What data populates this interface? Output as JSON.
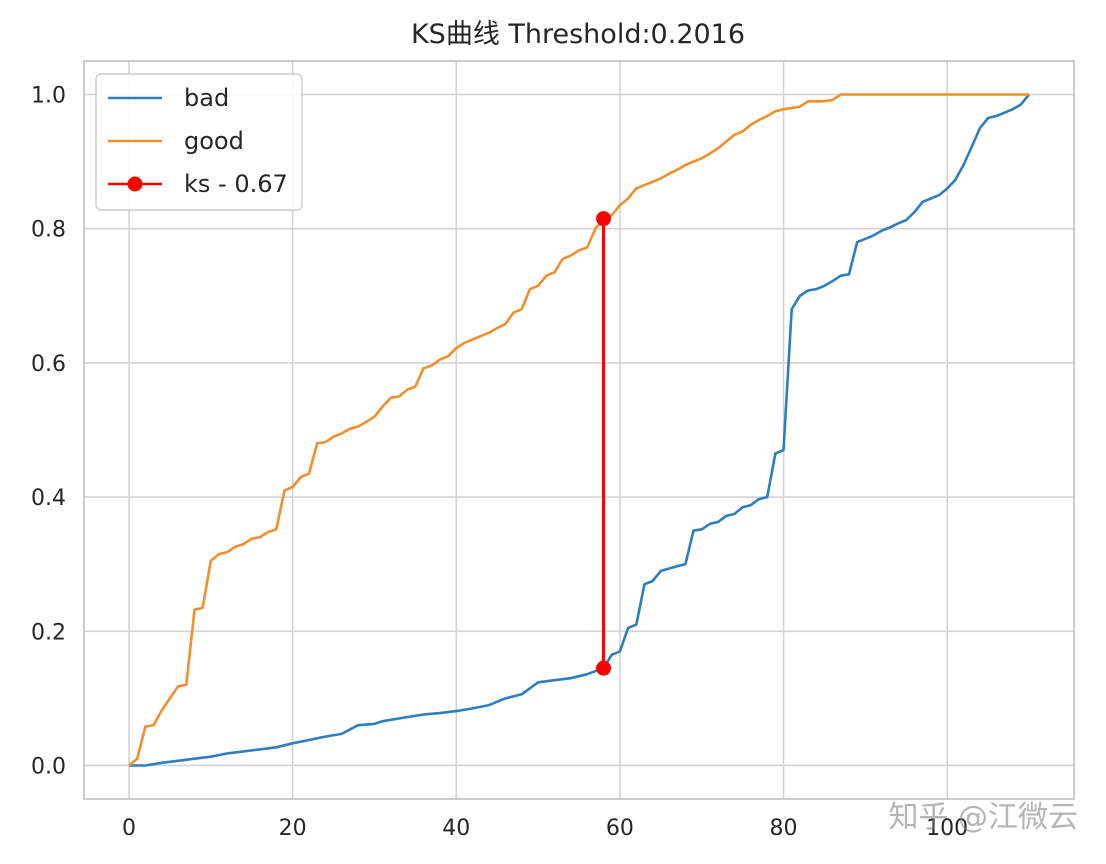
{
  "watermark": "知乎 @江微云",
  "chart_data": {
    "type": "line",
    "title": "KS曲线 Threshold:0.2016",
    "xlabel": "",
    "ylabel": "",
    "xlim": [
      -5.5,
      115.5
    ],
    "ylim": [
      -0.05,
      1.05
    ],
    "xticks": [
      0,
      20,
      40,
      60,
      80,
      100
    ],
    "yticks": [
      0.0,
      0.2,
      0.4,
      0.6,
      0.8,
      1.0
    ],
    "xtick_labels": [
      "0",
      "20",
      "40",
      "60",
      "80",
      "100"
    ],
    "ytick_labels": [
      "0.0",
      "0.2",
      "0.4",
      "0.6",
      "0.8",
      "1.0"
    ],
    "grid": true,
    "legend_position": "top-left",
    "series": [
      {
        "name": "bad",
        "color": "#2f7ebc",
        "points": [
          [
            0,
            0
          ],
          [
            2,
            0
          ],
          [
            4,
            0.004
          ],
          [
            6,
            0.007
          ],
          [
            8,
            0.01
          ],
          [
            10,
            0.013
          ],
          [
            12,
            0.018
          ],
          [
            14,
            0.021
          ],
          [
            16,
            0.024
          ],
          [
            18,
            0.027
          ],
          [
            20,
            0.033
          ],
          [
            22,
            0.038
          ],
          [
            24,
            0.043
          ],
          [
            26,
            0.047
          ],
          [
            28,
            0.06
          ],
          [
            30,
            0.062
          ],
          [
            31,
            0.066
          ],
          [
            32,
            0.068
          ],
          [
            34,
            0.072
          ],
          [
            36,
            0.076
          ],
          [
            38,
            0.078
          ],
          [
            40,
            0.081
          ],
          [
            42,
            0.085
          ],
          [
            44,
            0.09
          ],
          [
            45,
            0.095
          ],
          [
            46,
            0.1
          ],
          [
            48,
            0.106
          ],
          [
            49,
            0.115
          ],
          [
            50,
            0.124
          ],
          [
            52,
            0.127
          ],
          [
            54,
            0.13
          ],
          [
            56,
            0.136
          ],
          [
            58,
            0.145
          ],
          [
            59,
            0.165
          ],
          [
            60,
            0.17
          ],
          [
            61,
            0.205
          ],
          [
            62,
            0.21
          ],
          [
            63,
            0.27
          ],
          [
            64,
            0.275
          ],
          [
            65,
            0.29
          ],
          [
            67,
            0.297
          ],
          [
            68,
            0.3
          ],
          [
            69,
            0.35
          ],
          [
            70,
            0.352
          ],
          [
            71,
            0.36
          ],
          [
            72,
            0.363
          ],
          [
            73,
            0.372
          ],
          [
            74,
            0.375
          ],
          [
            75,
            0.385
          ],
          [
            76,
            0.388
          ],
          [
            77,
            0.397
          ],
          [
            78,
            0.4
          ],
          [
            79,
            0.465
          ],
          [
            80,
            0.47
          ],
          [
            81,
            0.68
          ],
          [
            82,
            0.7
          ],
          [
            83,
            0.708
          ],
          [
            84,
            0.71
          ],
          [
            85,
            0.715
          ],
          [
            86,
            0.722
          ],
          [
            87,
            0.73
          ],
          [
            88,
            0.732
          ],
          [
            89,
            0.78
          ],
          [
            90,
            0.785
          ],
          [
            91,
            0.79
          ],
          [
            92,
            0.797
          ],
          [
            93,
            0.802
          ],
          [
            94,
            0.808
          ],
          [
            95,
            0.813
          ],
          [
            96,
            0.825
          ],
          [
            97,
            0.84
          ],
          [
            98,
            0.845
          ],
          [
            99,
            0.85
          ],
          [
            100,
            0.86
          ],
          [
            101,
            0.873
          ],
          [
            102,
            0.895
          ],
          [
            103,
            0.922
          ],
          [
            104,
            0.95
          ],
          [
            105,
            0.965
          ],
          [
            106,
            0.968
          ],
          [
            107,
            0.973
          ],
          [
            108,
            0.978
          ],
          [
            109,
            0.985
          ],
          [
            110,
            1.0
          ]
        ]
      },
      {
        "name": "good",
        "color": "#f28e2b",
        "points": [
          [
            0,
            0
          ],
          [
            1,
            0.01
          ],
          [
            2,
            0.058
          ],
          [
            3,
            0.06
          ],
          [
            4,
            0.082
          ],
          [
            5,
            0.1
          ],
          [
            6,
            0.118
          ],
          [
            7,
            0.12
          ],
          [
            8,
            0.232
          ],
          [
            9,
            0.235
          ],
          [
            10,
            0.305
          ],
          [
            11,
            0.315
          ],
          [
            12,
            0.318
          ],
          [
            13,
            0.326
          ],
          [
            14,
            0.33
          ],
          [
            15,
            0.338
          ],
          [
            16,
            0.34
          ],
          [
            17,
            0.348
          ],
          [
            18,
            0.352
          ],
          [
            19,
            0.41
          ],
          [
            20,
            0.415
          ],
          [
            21,
            0.43
          ],
          [
            22,
            0.435
          ],
          [
            23,
            0.48
          ],
          [
            24,
            0.482
          ],
          [
            25,
            0.49
          ],
          [
            26,
            0.495
          ],
          [
            27,
            0.502
          ],
          [
            28,
            0.505
          ],
          [
            29,
            0.512
          ],
          [
            30,
            0.52
          ],
          [
            31,
            0.535
          ],
          [
            32,
            0.548
          ],
          [
            33,
            0.55
          ],
          [
            34,
            0.56
          ],
          [
            35,
            0.565
          ],
          [
            36,
            0.592
          ],
          [
            37,
            0.596
          ],
          [
            38,
            0.605
          ],
          [
            39,
            0.61
          ],
          [
            40,
            0.622
          ],
          [
            41,
            0.63
          ],
          [
            42,
            0.635
          ],
          [
            43,
            0.64
          ],
          [
            44,
            0.645
          ],
          [
            45,
            0.652
          ],
          [
            46,
            0.658
          ],
          [
            47,
            0.675
          ],
          [
            48,
            0.68
          ],
          [
            49,
            0.71
          ],
          [
            50,
            0.715
          ],
          [
            51,
            0.73
          ],
          [
            52,
            0.735
          ],
          [
            53,
            0.755
          ],
          [
            54,
            0.76
          ],
          [
            55,
            0.768
          ],
          [
            56,
            0.772
          ],
          [
            57,
            0.8
          ],
          [
            58,
            0.815
          ],
          [
            59,
            0.82
          ],
          [
            60,
            0.835
          ],
          [
            61,
            0.845
          ],
          [
            62,
            0.86
          ],
          [
            63,
            0.865
          ],
          [
            64,
            0.87
          ],
          [
            65,
            0.875
          ],
          [
            66,
            0.882
          ],
          [
            67,
            0.888
          ],
          [
            68,
            0.895
          ],
          [
            69,
            0.9
          ],
          [
            70,
            0.905
          ],
          [
            71,
            0.912
          ],
          [
            72,
            0.92
          ],
          [
            73,
            0.93
          ],
          [
            74,
            0.94
          ],
          [
            75,
            0.945
          ],
          [
            76,
            0.955
          ],
          [
            77,
            0.962
          ],
          [
            78,
            0.968
          ],
          [
            79,
            0.975
          ],
          [
            80,
            0.978
          ],
          [
            81,
            0.98
          ],
          [
            82,
            0.982
          ],
          [
            83,
            0.99
          ],
          [
            84,
            0.99
          ],
          [
            85,
            0.99
          ],
          [
            86,
            0.992
          ],
          [
            87,
            1.0
          ],
          [
            110,
            1.0
          ]
        ]
      },
      {
        "name": "ks - 0.67",
        "color": "#ff0000",
        "points": [
          [
            58,
            0.145
          ],
          [
            58,
            0.815
          ]
        ]
      }
    ]
  }
}
